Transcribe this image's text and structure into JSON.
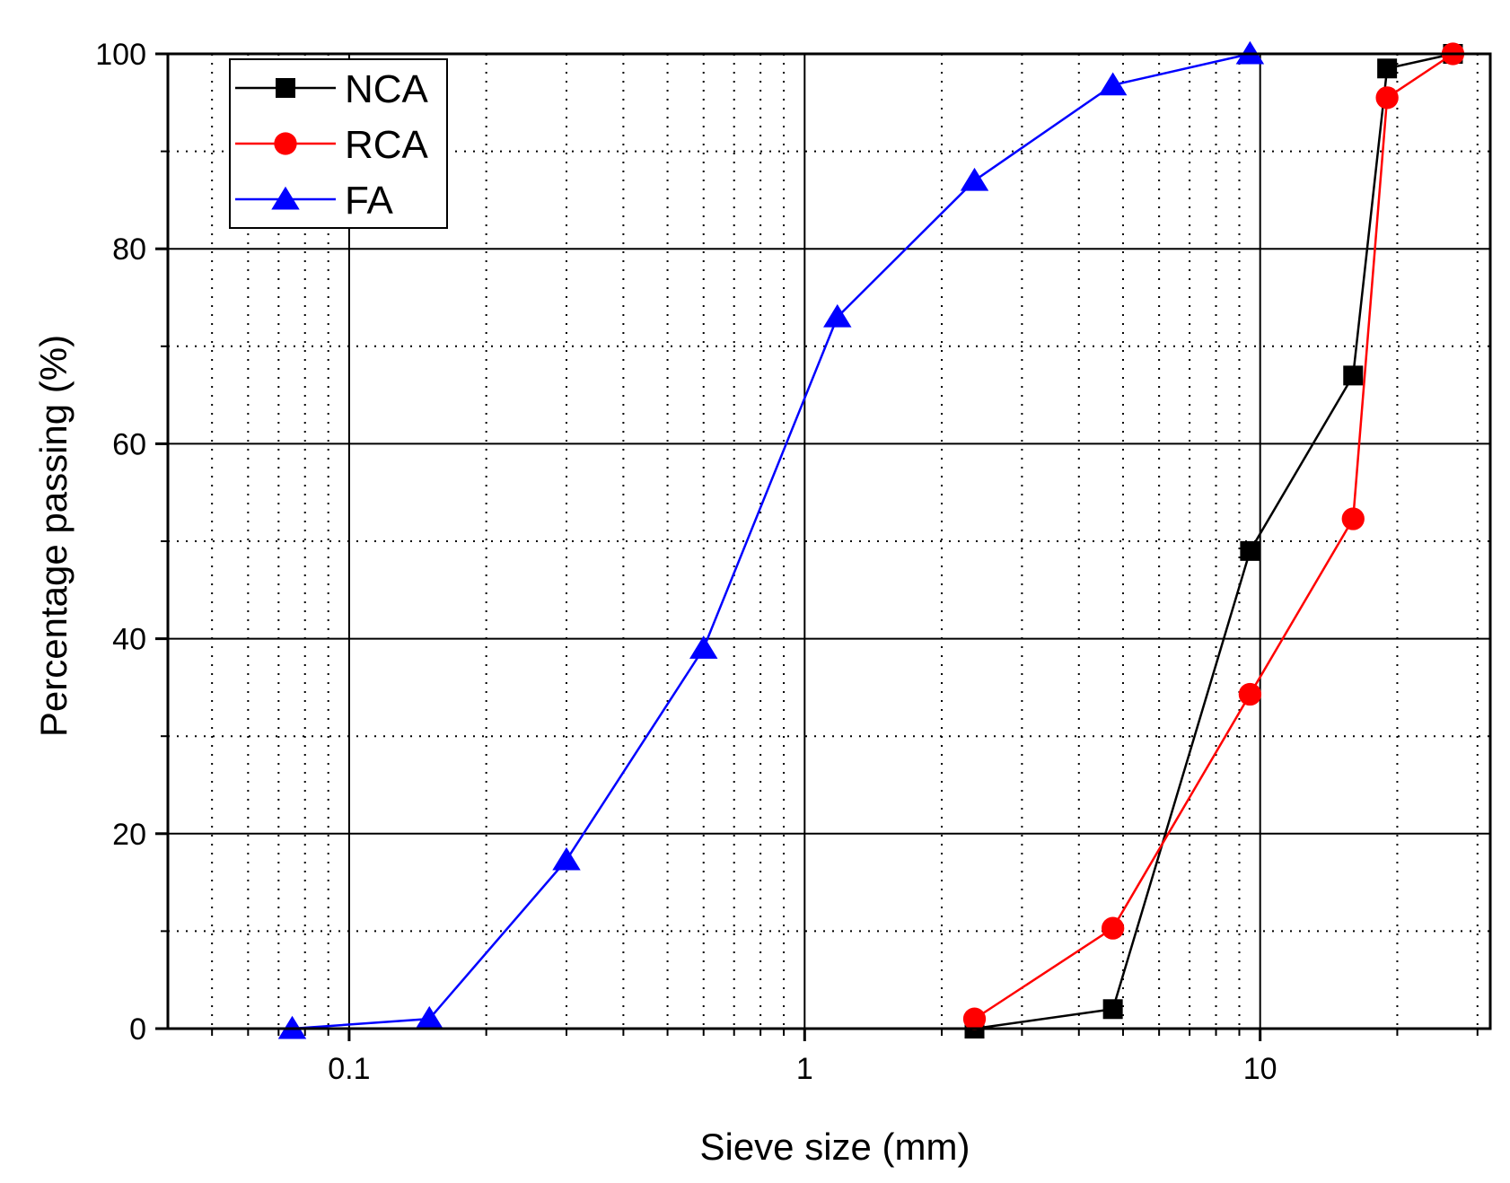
{
  "chart_data": {
    "type": "line",
    "x_scale": "log",
    "xlabel": "Sieve size (mm)",
    "ylabel": "Percentage passing (%)",
    "xlim": [
      0.04,
      32
    ],
    "ylim": [
      0,
      100
    ],
    "x_ticks": [
      {
        "value": 0.1,
        "label": "0.1"
      },
      {
        "value": 1,
        "label": "1"
      },
      {
        "value": 10,
        "label": "10"
      }
    ],
    "y_ticks": [
      {
        "value": 0,
        "label": "0"
      },
      {
        "value": 20,
        "label": "20"
      },
      {
        "value": 40,
        "label": "40"
      },
      {
        "value": 60,
        "label": "60"
      },
      {
        "value": 80,
        "label": "80"
      },
      {
        "value": 100,
        "label": "100"
      }
    ],
    "legend_position": "top-left",
    "grid": true,
    "series": [
      {
        "name": "NCA",
        "color": "#000000",
        "marker": "square",
        "points": [
          [
            2.36,
            0
          ],
          [
            4.75,
            2
          ],
          [
            9.5,
            49
          ],
          [
            16,
            67
          ],
          [
            19,
            98.5
          ],
          [
            26.5,
            100
          ]
        ]
      },
      {
        "name": "RCA",
        "color": "#ff0000",
        "marker": "circle",
        "points": [
          [
            2.36,
            1
          ],
          [
            4.75,
            10.3
          ],
          [
            9.5,
            34.3
          ],
          [
            16,
            52.3
          ],
          [
            19,
            95.5
          ],
          [
            26.5,
            100
          ]
        ]
      },
      {
        "name": "FA",
        "color": "#0000ff",
        "marker": "triangle",
        "points": [
          [
            0.075,
            0
          ],
          [
            0.15,
            1
          ],
          [
            0.3,
            17.3
          ],
          [
            0.6,
            39
          ],
          [
            1.18,
            73
          ],
          [
            2.36,
            87
          ],
          [
            4.75,
            96.8
          ],
          [
            9.5,
            100
          ]
        ]
      }
    ]
  }
}
